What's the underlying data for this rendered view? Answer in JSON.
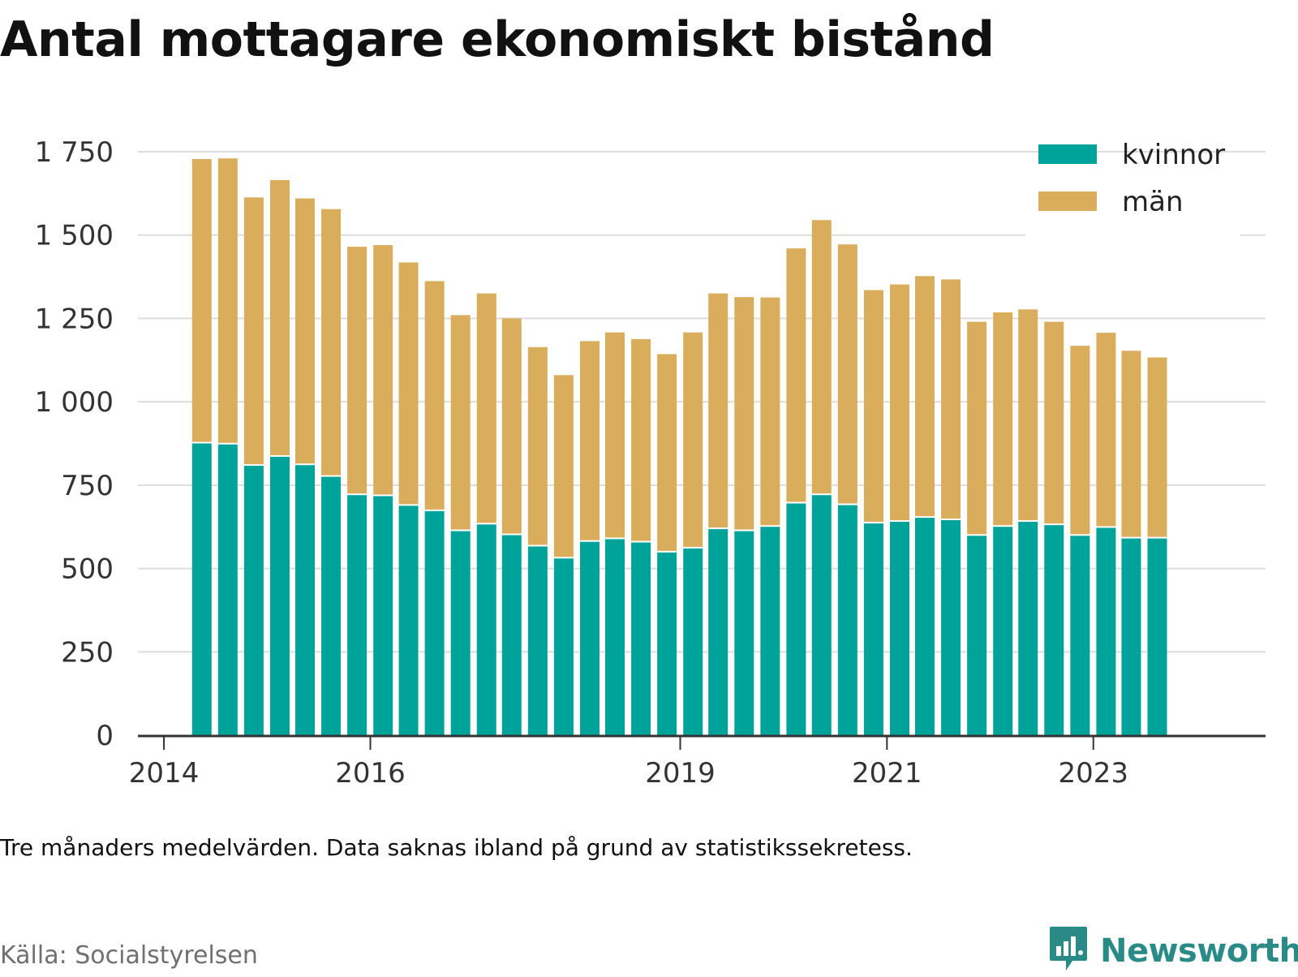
{
  "title": "Antal mottagare ekonomiskt bistånd",
  "note": "Tre månaders medelvärden. Data saknas ibland på grund av statistikssekretess.",
  "source": "Källa: Socialstyrelsen",
  "brand": {
    "name": "Newsworthy",
    "icon": "newsworthy-logo-icon",
    "color": "#2a8a86"
  },
  "colors": {
    "kvinnor": "#00a39a",
    "man": "#d9ad5b",
    "grid": "#dddddd",
    "axis": "#333333"
  },
  "chart_data": {
    "type": "bar",
    "stacked": true,
    "ylim": [
      0,
      1750
    ],
    "yticks": [
      0,
      250,
      500,
      750,
      1000,
      1250,
      1500,
      1750
    ],
    "ytick_labels": [
      "0",
      "250",
      "500",
      "750",
      "1 000",
      "1 250",
      "1 500",
      "1 750"
    ],
    "xlim": [
      "2013-10-01",
      "2024-09-01"
    ],
    "xticks": [
      {
        "date": "2014-01-01",
        "label": "2014"
      },
      {
        "date": "2016-01-01",
        "label": "2016"
      },
      {
        "date": "2019-01-01",
        "label": "2019"
      },
      {
        "date": "2021-01-01",
        "label": "2021"
      },
      {
        "date": "2023-01-01",
        "label": "2023"
      }
    ],
    "grid": true,
    "legend_position": "top-right",
    "x": [
      "2014-05-15",
      "2014-08-15",
      "2014-11-15",
      "2015-02-15",
      "2015-05-15",
      "2015-08-15",
      "2015-11-15",
      "2016-02-15",
      "2016-05-15",
      "2016-08-15",
      "2016-11-15",
      "2017-02-15",
      "2017-05-15",
      "2017-08-15",
      "2017-11-15",
      "2018-02-15",
      "2018-05-15",
      "2018-08-15",
      "2018-11-15",
      "2019-02-15",
      "2019-05-15",
      "2019-08-15",
      "2019-11-15",
      "2020-02-15",
      "2020-05-15",
      "2020-08-15",
      "2020-11-15",
      "2021-02-15",
      "2021-05-15",
      "2021-08-15",
      "2021-11-15",
      "2022-02-15",
      "2022-05-15",
      "2022-08-15",
      "2022-11-15",
      "2023-02-15",
      "2023-05-15",
      "2023-08-15"
    ],
    "series": [
      {
        "name": "kvinnor",
        "color": "#00a39a",
        "values": [
          875,
          872,
          808,
          835,
          810,
          775,
          720,
          717,
          688,
          672,
          612,
          632,
          600,
          566,
          530,
          580,
          588,
          578,
          548,
          560,
          618,
          612,
          625,
          695,
          720,
          690,
          635,
          640,
          652,
          645,
          598,
          625,
          640,
          630,
          598,
          622,
          590,
          590
        ]
      },
      {
        "name": "män",
        "color": "#d9ad5b",
        "values": [
          853,
          858,
          805,
          830,
          800,
          803,
          745,
          753,
          730,
          690,
          648,
          693,
          650,
          598,
          550,
          602,
          620,
          610,
          595,
          648,
          707,
          702,
          688,
          765,
          825,
          782,
          700,
          712,
          725,
          722,
          642,
          643,
          637,
          610,
          570,
          585,
          563,
          543
        ]
      }
    ]
  }
}
